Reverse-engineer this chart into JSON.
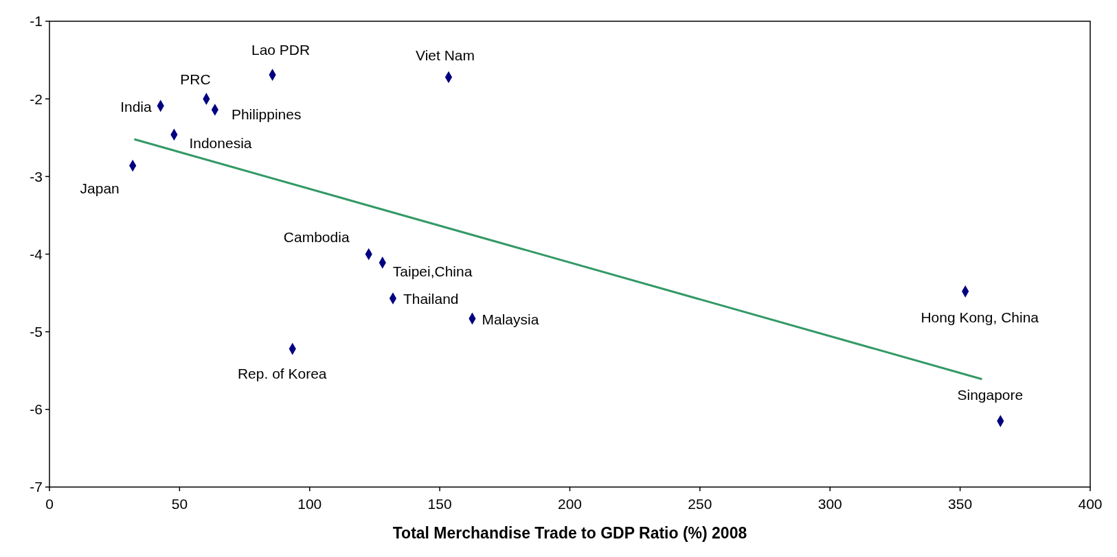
{
  "chart_data": {
    "type": "scatter",
    "xlabel": "Total Merchandise Trade to GDP Ratio (%) 2008",
    "xlim": [
      0,
      400
    ],
    "xticks": [
      0,
      50,
      100,
      150,
      200,
      250,
      300,
      350,
      400
    ],
    "ylim": [
      -7,
      -1
    ],
    "yticks": [
      -7,
      -6,
      -5,
      -4,
      -3,
      -2,
      -1
    ],
    "grid": false,
    "marker": "diamond",
    "series": [
      {
        "type": "scatter",
        "color": "#000080",
        "x": [
          85.7,
          153.4,
          60.3,
          63.6,
          42.7,
          47.9,
          32,
          122.7,
          128,
          132,
          162.5,
          93.4,
          352,
          365.5
        ],
        "values": [
          -1.69,
          -1.72,
          -2.0,
          -2.14,
          -2.09,
          -2.46,
          -2.86,
          -4.0,
          -4.11,
          -4.57,
          -4.83,
          -5.22,
          -4.48,
          -6.15
        ]
      },
      {
        "type": "line",
        "color": "#339966",
        "marker": "none",
        "line_style": "solid",
        "x": [
          32.6,
          358.4
        ],
        "values": [
          -2.52,
          -5.61
        ]
      }
    ],
    "annotations": [
      {
        "text": "Lao PDR",
        "x": 85.7,
        "y": -1.69
      },
      {
        "text": "Viet Nam",
        "x": 153.4,
        "y": -1.72
      },
      {
        "text": "PRC",
        "x": 60.3,
        "y": -2.0
      },
      {
        "text": "Philippines",
        "x": 63.6,
        "y": -2.14
      },
      {
        "text": "India",
        "x": 42.7,
        "y": -2.09
      },
      {
        "text": "Indonesia",
        "x": 47.9,
        "y": -2.46
      },
      {
        "text": "Japan",
        "x": 32,
        "y": -2.86
      },
      {
        "text": "Cambodia",
        "x": 122.7,
        "y": -4.0
      },
      {
        "text": "Taipei,China",
        "x": 128,
        "y": -4.11
      },
      {
        "text": "Thailand",
        "x": 132,
        "y": -4.57
      },
      {
        "text": "Malaysia",
        "x": 162.5,
        "y": -4.83
      },
      {
        "text": "Rep. of Korea",
        "x": 93.4,
        "y": -5.22
      },
      {
        "text": "Hong Kong, China",
        "x": 352,
        "y": -4.48
      },
      {
        "text": "Singapore",
        "x": 365.5,
        "y": -6.15
      }
    ]
  }
}
